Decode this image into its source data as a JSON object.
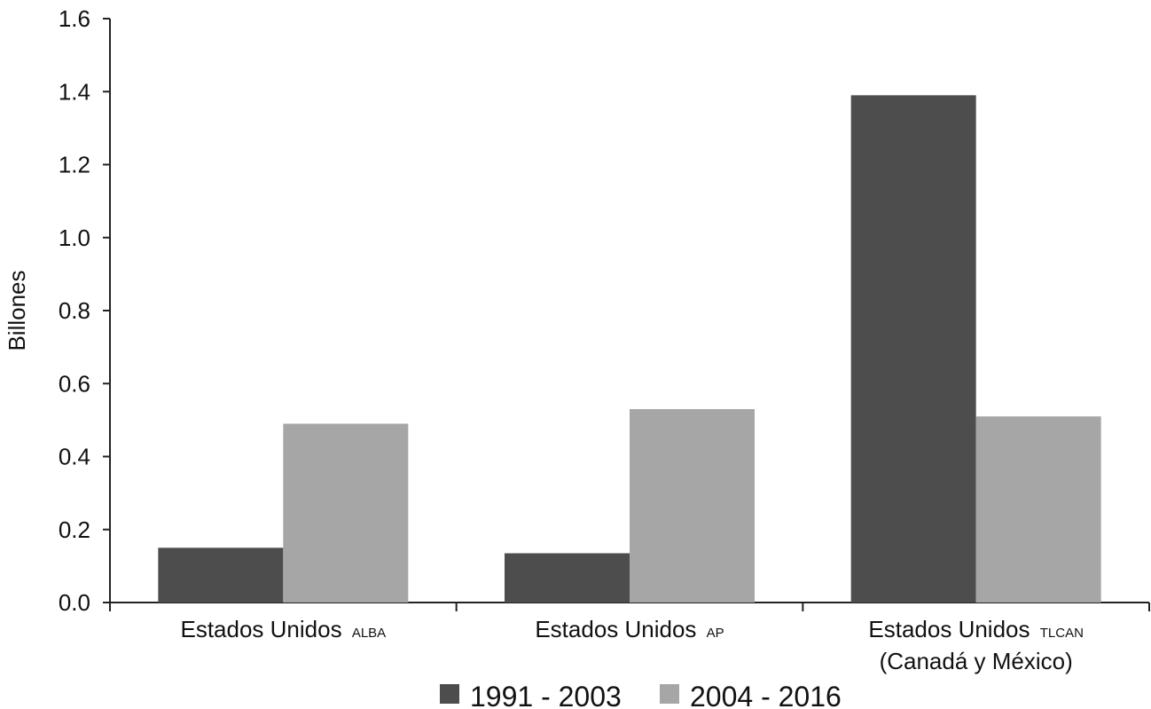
{
  "chart_data": {
    "type": "bar",
    "categories": [
      {
        "main": "Estados Unidos",
        "sub": "ALBA",
        "line2": ""
      },
      {
        "main": "Estados Unidos",
        "sub": "AP",
        "line2": ""
      },
      {
        "main": "Estados Unidos",
        "sub": "TLCAN",
        "line2": "(Canadá y México)"
      }
    ],
    "series": [
      {
        "name": "1991 - 2003",
        "color": "#4d4d4d",
        "values": [
          0.15,
          0.135,
          1.39
        ]
      },
      {
        "name": "2004 - 2016",
        "color": "#a6a6a6",
        "values": [
          0.49,
          0.53,
          0.51
        ]
      }
    ],
    "ylabel": "Billones",
    "xlabel": "",
    "title": "",
    "ylim": [
      0,
      1.6
    ],
    "yticks": [
      "0.0",
      "0.2",
      "0.4",
      "0.6",
      "0.8",
      "1.0",
      "1.2",
      "1.4",
      "1.6"
    ],
    "grid": false,
    "legend_position": "bottom"
  }
}
